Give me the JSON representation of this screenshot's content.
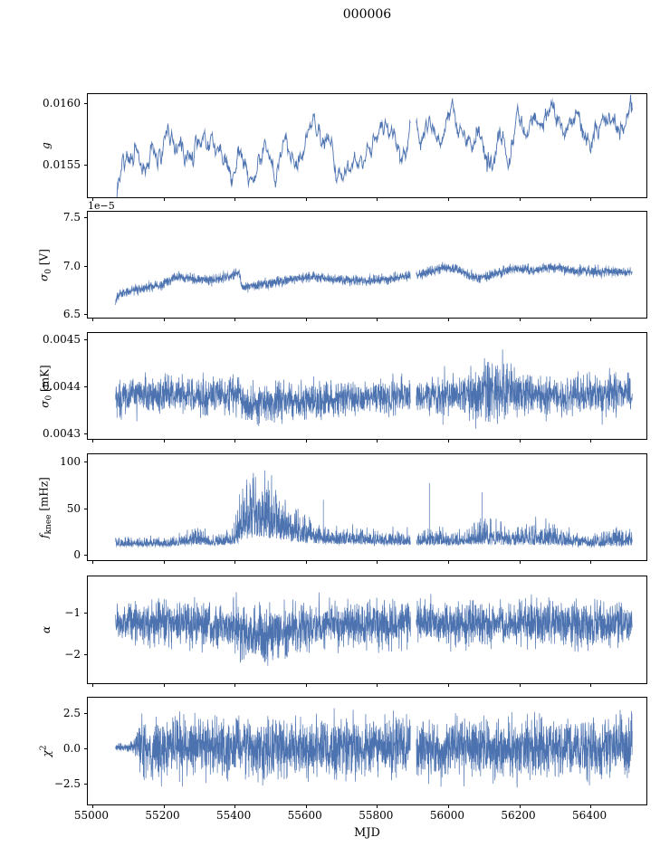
{
  "chart_data": {
    "type": "line",
    "title": "000006",
    "xlabel": "MJD",
    "line_color": "#4c72b0",
    "background": "#ffffff",
    "xlim": [
      54990,
      56560
    ],
    "xticks": [
      55000,
      55200,
      55400,
      55600,
      55800,
      56000,
      56200,
      56400
    ],
    "xtick_labels": [
      "55000",
      "55200",
      "55400",
      "55600",
      "55800",
      "56000",
      "56200",
      "56400"
    ],
    "x_start": 55068,
    "x_end": 56520,
    "gaps": [
      [
        55897,
        55913
      ]
    ],
    "panels": [
      {
        "name": "g",
        "ylabel_text": "g",
        "ylabel": [
          [
            "i",
            "g"
          ]
        ],
        "offset": "",
        "ylim": [
          0.015225,
          0.01607
        ],
        "yticks": [
          {
            "v": 0.0155,
            "label": "0.0155"
          },
          {
            "v": 0.016,
            "label": "0.0160"
          }
        ],
        "noise": "sym",
        "points": 1300,
        "smooth": 13,
        "seed": 7,
        "line_width": 0.9,
        "trend": [
          [
            55068,
            0.01527
          ],
          [
            55090,
            0.0153
          ],
          [
            55120,
            0.01536
          ],
          [
            55150,
            0.01547
          ],
          [
            55185,
            0.01553
          ],
          [
            55215,
            0.01557
          ],
          [
            55245,
            0.01562
          ],
          [
            55275,
            0.01556
          ],
          [
            55305,
            0.01558
          ],
          [
            55340,
            0.01559
          ],
          [
            55375,
            0.0156
          ],
          [
            55410,
            0.01562
          ],
          [
            55422,
            0.01563
          ],
          [
            55428,
            0.01549
          ],
          [
            55450,
            0.01553
          ],
          [
            55480,
            0.01557
          ],
          [
            55515,
            0.01565
          ],
          [
            55550,
            0.0157
          ],
          [
            55585,
            0.01573
          ],
          [
            55615,
            0.01574
          ],
          [
            55640,
            0.01571
          ],
          [
            55658,
            0.01557
          ],
          [
            55680,
            0.0156
          ],
          [
            55705,
            0.01562
          ],
          [
            55722,
            0.01556
          ],
          [
            55750,
            0.0156
          ],
          [
            55785,
            0.01568
          ],
          [
            55820,
            0.01571
          ],
          [
            55860,
            0.01572
          ],
          [
            55900,
            0.01576
          ],
          [
            55935,
            0.01581
          ],
          [
            55965,
            0.01586
          ],
          [
            55990,
            0.01588
          ],
          [
            56015,
            0.0158
          ],
          [
            56040,
            0.01569
          ],
          [
            56065,
            0.01576
          ],
          [
            56090,
            0.01579
          ],
          [
            56115,
            0.0157
          ],
          [
            56135,
            0.01558
          ],
          [
            56155,
            0.01568
          ],
          [
            56180,
            0.0158
          ],
          [
            56210,
            0.01585
          ],
          [
            56240,
            0.01592
          ],
          [
            56265,
            0.01589
          ],
          [
            56290,
            0.01586
          ],
          [
            56315,
            0.01594
          ],
          [
            56335,
            0.016
          ],
          [
            56355,
            0.0159
          ],
          [
            56380,
            0.01585
          ],
          [
            56410,
            0.01584
          ],
          [
            56450,
            0.01582
          ],
          [
            56490,
            0.01582
          ],
          [
            56520,
            0.01582
          ]
        ],
        "amp": [
          [
            55068,
            0.0003
          ],
          [
            56520,
            0.0003
          ]
        ],
        "spikes": []
      },
      {
        "name": "sigma0-v",
        "ylabel_text": "σ0 [V]",
        "ylabel": [
          [
            "i",
            "σ"
          ],
          [
            "sub",
            "0"
          ],
          [
            "n",
            " [V]"
          ]
        ],
        "offset": "1e−5",
        "ylim": [
          6.45,
          7.55
        ],
        "yticks": [
          {
            "v": 6.5,
            "label": "6.5"
          },
          {
            "v": 7.0,
            "label": "7.0"
          },
          {
            "v": 7.5,
            "label": "7.5"
          }
        ],
        "noise": "sym",
        "points": 2600,
        "smooth": 1,
        "seed": 23,
        "line_width": 0.7,
        "trend": [
          [
            55068,
            6.62
          ],
          [
            55080,
            6.7
          ],
          [
            55110,
            6.73
          ],
          [
            55150,
            6.76
          ],
          [
            55200,
            6.79
          ],
          [
            55240,
            6.88
          ],
          [
            55280,
            6.86
          ],
          [
            55330,
            6.84
          ],
          [
            55380,
            6.87
          ],
          [
            55415,
            6.92
          ],
          [
            55425,
            6.76
          ],
          [
            55470,
            6.79
          ],
          [
            55520,
            6.82
          ],
          [
            55570,
            6.85
          ],
          [
            55620,
            6.87
          ],
          [
            55670,
            6.85
          ],
          [
            55720,
            6.84
          ],
          [
            55770,
            6.83
          ],
          [
            55830,
            6.85
          ],
          [
            55890,
            6.88
          ],
          [
            55940,
            6.91
          ],
          [
            55985,
            6.97
          ],
          [
            56030,
            6.95
          ],
          [
            56080,
            6.86
          ],
          [
            56120,
            6.88
          ],
          [
            56160,
            6.94
          ],
          [
            56200,
            6.97
          ],
          [
            56240,
            6.94
          ],
          [
            56290,
            6.97
          ],
          [
            56340,
            6.95
          ],
          [
            56390,
            6.93
          ],
          [
            56440,
            6.93
          ],
          [
            56490,
            6.92
          ],
          [
            56520,
            6.93
          ]
        ],
        "amp": [
          [
            55068,
            0.042
          ],
          [
            56520,
            0.042
          ]
        ],
        "spikes": []
      },
      {
        "name": "sigma0-mk",
        "ylabel_text": "σ0 [mK]",
        "ylabel": [
          [
            "i",
            "σ"
          ],
          [
            "sub",
            "0"
          ],
          [
            "n",
            " [mK]"
          ]
        ],
        "offset": "",
        "ylim": [
          0.004287,
          0.004512
        ],
        "yticks": [
          {
            "v": 0.0043,
            "label": "0.0043"
          },
          {
            "v": 0.0044,
            "label": "0.0044"
          },
          {
            "v": 0.0045,
            "label": "0.0045"
          }
        ],
        "noise": "sym",
        "points": 2600,
        "smooth": 1,
        "seed": 37,
        "line_width": 0.7,
        "trend": [
          [
            55068,
            0.004372
          ],
          [
            55090,
            0.004378
          ],
          [
            55150,
            0.00438
          ],
          [
            55220,
            0.004382
          ],
          [
            55300,
            0.00438
          ],
          [
            55360,
            0.004381
          ],
          [
            55415,
            0.004383
          ],
          [
            55428,
            0.004358
          ],
          [
            55480,
            0.004362
          ],
          [
            55550,
            0.004366
          ],
          [
            55620,
            0.004369
          ],
          [
            55700,
            0.004372
          ],
          [
            55780,
            0.004374
          ],
          [
            55860,
            0.004376
          ],
          [
            55940,
            0.004378
          ],
          [
            56000,
            0.004379
          ],
          [
            56060,
            0.00438
          ],
          [
            56110,
            0.004388
          ],
          [
            56150,
            0.00439
          ],
          [
            56200,
            0.004382
          ],
          [
            56260,
            0.004378
          ],
          [
            56330,
            0.004379
          ],
          [
            56400,
            0.00438
          ],
          [
            56470,
            0.004381
          ],
          [
            56520,
            0.004382
          ]
        ],
        "amp": [
          [
            55068,
            3.3e-05
          ],
          [
            56050,
            3.3e-05
          ],
          [
            56090,
            5.5e-05
          ],
          [
            56160,
            5.5e-05
          ],
          [
            56210,
            3.6e-05
          ],
          [
            56520,
            3.4e-05
          ]
        ],
        "spikes": [
          [
            55072,
            0.004332
          ],
          [
            55988,
            0.004317
          ],
          [
            56475,
            0.004332
          ]
        ]
      },
      {
        "name": "fknee",
        "ylabel_text": "fknee [mHz]",
        "ylabel": [
          [
            "i",
            "f"
          ],
          [
            "sub",
            "knee"
          ],
          [
            "n",
            " [mHz]"
          ]
        ],
        "offset": "",
        "ylim": [
          -7,
          107
        ],
        "yticks": [
          {
            "v": 0,
            "label": "0"
          },
          {
            "v": 50,
            "label": "50"
          },
          {
            "v": 100,
            "label": "100"
          }
        ],
        "noise": "pos",
        "points": 2700,
        "smooth": 1,
        "seed": 51,
        "line_width": 0.7,
        "trend": [
          [
            55068,
            8
          ],
          [
            55200,
            8
          ],
          [
            55280,
            10
          ],
          [
            55340,
            9
          ],
          [
            55400,
            10
          ],
          [
            55425,
            14
          ],
          [
            55460,
            18
          ],
          [
            55510,
            16
          ],
          [
            55560,
            13
          ],
          [
            55620,
            11
          ],
          [
            55700,
            10
          ],
          [
            55800,
            10
          ],
          [
            55900,
            9
          ],
          [
            56000,
            9
          ],
          [
            56100,
            10
          ],
          [
            56200,
            9
          ],
          [
            56300,
            9
          ],
          [
            56400,
            8
          ],
          [
            56520,
            8
          ]
        ],
        "amp": [
          [
            55068,
            7
          ],
          [
            55240,
            7
          ],
          [
            55290,
            14
          ],
          [
            55340,
            9
          ],
          [
            55395,
            11
          ],
          [
            55420,
            48
          ],
          [
            55445,
            58
          ],
          [
            55480,
            50
          ],
          [
            55520,
            40
          ],
          [
            55560,
            32
          ],
          [
            55600,
            24
          ],
          [
            55640,
            16
          ],
          [
            55680,
            13
          ],
          [
            55720,
            16
          ],
          [
            55760,
            13
          ],
          [
            55800,
            12
          ],
          [
            55850,
            11
          ],
          [
            55900,
            11
          ],
          [
            55950,
            13
          ],
          [
            56000,
            12
          ],
          [
            56050,
            11
          ],
          [
            56090,
            20
          ],
          [
            56140,
            18
          ],
          [
            56190,
            14
          ],
          [
            56240,
            20
          ],
          [
            56290,
            18
          ],
          [
            56340,
            12
          ],
          [
            56390,
            9
          ],
          [
            56430,
            10
          ],
          [
            56460,
            18
          ],
          [
            56500,
            15
          ],
          [
            56520,
            12
          ]
        ],
        "spikes": [
          [
            55652,
            58
          ],
          [
            55950,
            76
          ],
          [
            56098,
            66
          ]
        ]
      },
      {
        "name": "alpha",
        "ylabel_text": "α",
        "ylabel": [
          [
            "i",
            "α"
          ]
        ],
        "offset": "",
        "ylim": [
          -2.72,
          -0.14
        ],
        "yticks": [
          {
            "v": -2,
            "label": "−2"
          },
          {
            "v": -1,
            "label": "−1"
          }
        ],
        "noise": "sym",
        "points": 2800,
        "smooth": 1,
        "seed": 67,
        "line_width": 0.7,
        "trend": [
          [
            55068,
            -1.25
          ],
          [
            55250,
            -1.25
          ],
          [
            55320,
            -1.35
          ],
          [
            55400,
            -1.35
          ],
          [
            55430,
            -1.5
          ],
          [
            55470,
            -1.55
          ],
          [
            55540,
            -1.5
          ],
          [
            55600,
            -1.4
          ],
          [
            55650,
            -1.35
          ],
          [
            55720,
            -1.3
          ],
          [
            55800,
            -1.3
          ],
          [
            55900,
            -1.28
          ],
          [
            56000,
            -1.28
          ],
          [
            56520,
            -1.28
          ]
        ],
        "amp": [
          [
            55068,
            0.42
          ],
          [
            55200,
            0.42
          ],
          [
            55280,
            0.5
          ],
          [
            55350,
            0.45
          ],
          [
            55430,
            0.6
          ],
          [
            55500,
            0.6
          ],
          [
            55560,
            0.5
          ],
          [
            55620,
            0.45
          ],
          [
            55700,
            0.42
          ],
          [
            55800,
            0.45
          ],
          [
            55900,
            0.42
          ],
          [
            56000,
            0.45
          ],
          [
            56100,
            0.42
          ],
          [
            56250,
            0.45
          ],
          [
            56400,
            0.45
          ],
          [
            56520,
            0.45
          ]
        ],
        "spikes": []
      },
      {
        "name": "chi2",
        "ylabel_text": "χ2",
        "ylabel": [
          [
            "i",
            "χ"
          ],
          [
            "sup",
            "2"
          ]
        ],
        "offset": "",
        "ylim": [
          -4.0,
          3.5
        ],
        "yticks": [
          {
            "v": -2.5,
            "label": "−2.5"
          },
          {
            "v": 0,
            "label": "0.0"
          },
          {
            "v": 2.5,
            "label": "2.5"
          }
        ],
        "noise": "sym",
        "points": 3000,
        "smooth": 1,
        "seed": 83,
        "line_width": 0.7,
        "trend": [
          [
            55068,
            0
          ],
          [
            56520,
            0
          ]
        ],
        "amp": [
          [
            55068,
            0.25
          ],
          [
            55118,
            0.3
          ],
          [
            55138,
            1.7
          ],
          [
            55200,
            1.75
          ],
          [
            56520,
            1.75
          ]
        ],
        "spikes": []
      }
    ]
  }
}
